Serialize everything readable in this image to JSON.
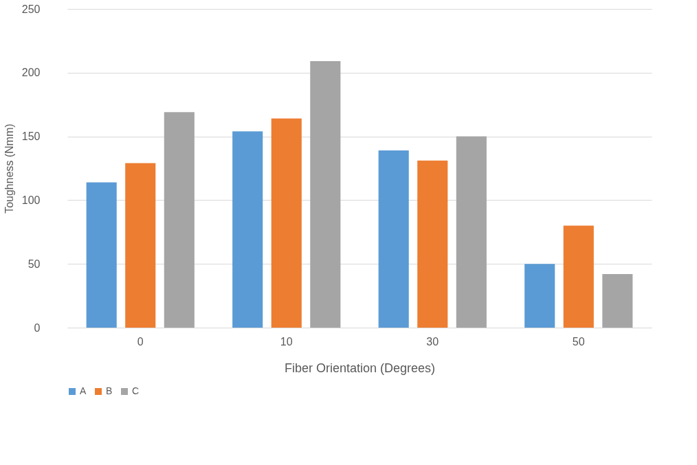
{
  "chart_data": {
    "type": "bar",
    "xlabel": "Fiber Orientation (Degrees)",
    "ylabel": "Toughness (Nmm)",
    "categories": [
      "0",
      "10",
      "30",
      "50"
    ],
    "series": [
      {
        "name": "A",
        "color": "#5b9bd5",
        "values": [
          114,
          154,
          139,
          50
        ]
      },
      {
        "name": "B",
        "color": "#ed7d31",
        "values": [
          129,
          164,
          131,
          80
        ]
      },
      {
        "name": "C",
        "color": "#a5a5a5",
        "values": [
          169,
          209,
          150,
          42
        ]
      }
    ],
    "ylim": [
      0,
      250
    ],
    "yticks": [
      0,
      50,
      100,
      150,
      200,
      250
    ],
    "grid": "y",
    "legend": "bottom"
  }
}
